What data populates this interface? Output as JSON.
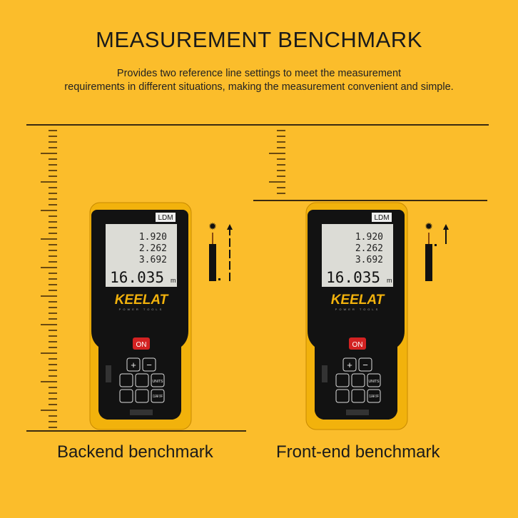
{
  "header": {
    "title": "MEASUREMENT BENCHMARK",
    "subtitle_line1": "Provides two reference line settings to meet the measurement",
    "subtitle_line2": "requirements in different situations, making the measurement convenient and simple."
  },
  "panels": [
    {
      "caption": "Backend benchmark",
      "reference": "back"
    },
    {
      "caption": "Front-end benchmark",
      "reference": "front"
    }
  ],
  "device": {
    "brand": "KEELAT",
    "brand_tagline": "POWER TOOLS",
    "mode_label": "LDM",
    "readings": [
      "1.920",
      "2.262",
      "3.692"
    ],
    "main_reading": "16.035",
    "unit": "m",
    "buttons": [
      "ON",
      "+",
      "−",
      "UNITS",
      "CLEAR OFF"
    ]
  },
  "colors": {
    "background": "#fbbd2b",
    "device_body": "#f6b80f",
    "device_face": "#111111",
    "on_button": "#d32222",
    "lines": "#3a2a10"
  }
}
